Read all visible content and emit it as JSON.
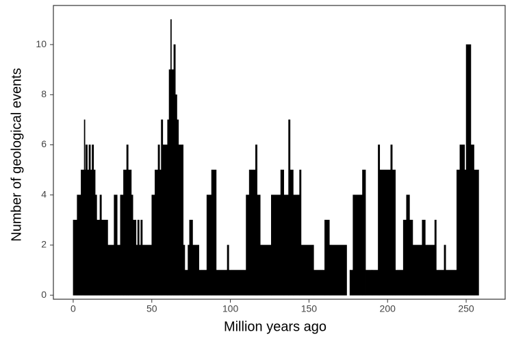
{
  "chart_data": {
    "type": "histogram",
    "xlabel": "Million years ago",
    "ylabel": "Number of geological events",
    "bins": [
      0,
      2.5,
      5,
      7,
      7.5,
      8,
      9,
      10,
      11,
      12,
      13,
      14,
      15,
      17,
      18,
      22,
      26,
      28,
      30,
      32,
      34,
      35,
      37,
      38,
      40,
      41,
      42,
      43,
      44,
      50,
      52,
      54,
      55,
      56,
      57,
      60,
      61,
      62,
      62.5,
      64,
      65,
      66,
      67,
      70,
      71,
      73,
      74,
      76,
      80,
      85,
      88,
      91,
      98,
      99,
      110,
      112,
      116,
      117,
      119,
      120,
      126,
      132,
      134,
      137,
      138,
      140,
      144,
      145,
      153,
      160,
      163,
      164,
      174,
      176,
      178,
      184,
      186,
      190,
      194,
      195,
      202,
      203,
      205,
      210,
      212,
      214,
      216,
      222,
      224,
      230,
      231,
      236,
      237,
      244,
      246,
      249,
      250,
      253,
      255,
      258
    ],
    "counts": [
      3,
      4,
      5,
      7,
      5,
      6,
      5,
      6,
      5,
      6,
      5,
      4,
      3,
      4,
      3,
      2,
      4,
      2,
      4,
      5,
      6,
      5,
      4,
      3,
      2,
      3,
      2,
      3,
      2,
      4,
      5,
      6,
      5,
      7,
      6,
      7,
      9,
      11,
      9,
      10,
      8,
      7,
      6,
      2,
      1,
      2,
      3,
      2,
      1,
      4,
      5,
      1,
      2,
      1,
      4,
      5,
      6,
      4,
      2,
      2,
      4,
      5,
      4,
      7,
      5,
      4,
      5,
      2,
      1,
      3,
      2,
      2,
      0,
      1,
      4,
      5,
      1,
      1,
      6,
      5,
      6,
      5,
      1,
      3,
      4,
      3,
      2,
      3,
      2,
      3,
      1,
      2,
      1,
      5,
      6,
      5,
      10,
      6,
      5
    ],
    "color": "#000000",
    "xlim": [
      -12.6,
      274.8
    ],
    "ylim": [
      -0.16,
      11.56
    ],
    "xticks": [
      0,
      50,
      100,
      150,
      200,
      250
    ],
    "yticks": [
      0,
      2,
      4,
      6,
      8,
      10
    ],
    "grid": false
  }
}
